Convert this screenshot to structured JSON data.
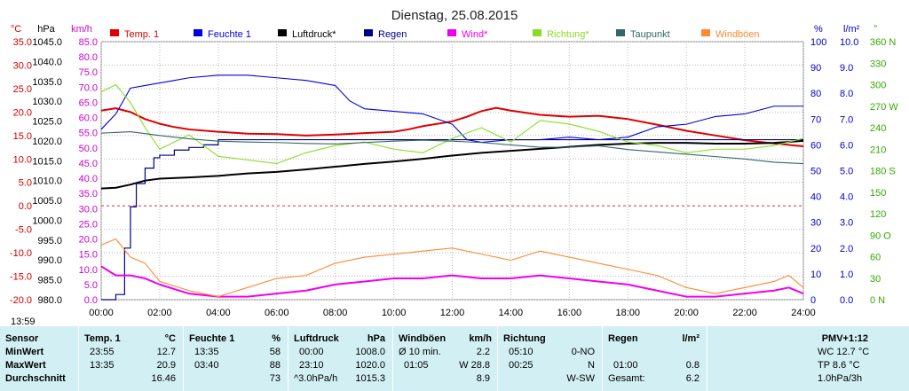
{
  "chart_data": {
    "type": "line",
    "title": "Dienstag, 25.08.2015",
    "x_axis": {
      "ticks": [
        "00:00",
        "02:00",
        "04:00",
        "06:00",
        "08:00",
        "10:00",
        "12:00",
        "14:00",
        "16:00",
        "18:00",
        "20:00",
        "22:00",
        "24:00"
      ],
      "range": [
        0,
        24
      ],
      "start_label": "13:59"
    },
    "left_axes": [
      {
        "unit": "°C",
        "color": "#cc0000",
        "range": [
          -20,
          35
        ],
        "step": 5
      },
      {
        "unit": "hPa",
        "color": "#000000",
        "range": [
          980,
          1045
        ],
        "step": 5
      },
      {
        "unit": "km/h",
        "color": "#cc00cc",
        "range": [
          0,
          85
        ],
        "step": 5
      }
    ],
    "right_axes": [
      {
        "unit": "%",
        "color": "#0000cc",
        "range": [
          0,
          100
        ],
        "step": 10
      },
      {
        "unit": "l/m²",
        "color": "#0000cc",
        "range": [
          0,
          10
        ],
        "step": 1
      },
      {
        "unit": "°",
        "color": "#33aa00",
        "range": [
          0,
          360
        ],
        "step": 30,
        "direction_labels": {
          "0": "N",
          "90": "O",
          "180": "S",
          "270": "W",
          "360": "N"
        }
      }
    ],
    "grid": true,
    "legend": [
      {
        "name": "Temp. 1",
        "color": "#dd0000"
      },
      {
        "name": "Feuchte 1",
        "color": "#0000dd"
      },
      {
        "name": "Luftdruck*",
        "color": "#000000"
      },
      {
        "name": "Regen",
        "color": "#000088"
      },
      {
        "name": "Wind*",
        "color": "#ee00ee"
      },
      {
        "name": "Richtung*",
        "color": "#88dd22"
      },
      {
        "name": "Taupunkt",
        "color": "#336666"
      },
      {
        "name": "Windböen",
        "color": "#ff8833"
      }
    ],
    "series": [
      {
        "name": "Temp. 1",
        "axis": "°C",
        "color": "#dd0000",
        "x": [
          0,
          0.5,
          1,
          1.5,
          2,
          2.5,
          3,
          4,
          5,
          6,
          7,
          8,
          9,
          10,
          10.5,
          11,
          11.5,
          12,
          12.5,
          13,
          13.5,
          14,
          15,
          16,
          17,
          18,
          19,
          20,
          21,
          22,
          23,
          24
        ],
        "values": [
          20.3,
          20.8,
          20.0,
          18.5,
          17.5,
          16.8,
          16.3,
          15.8,
          15.4,
          15.3,
          15.0,
          15.2,
          15.5,
          15.8,
          16.3,
          17.0,
          17.5,
          18.0,
          19.0,
          20.2,
          20.9,
          20.3,
          19.4,
          19.0,
          19.2,
          18.5,
          17.3,
          16.0,
          15.0,
          14.0,
          13.3,
          12.7
        ]
      },
      {
        "name": "Feuchte 1",
        "axis": "%",
        "color": "#0000dd",
        "x": [
          0,
          0.5,
          1,
          1.5,
          2,
          2.5,
          3,
          4,
          5,
          6,
          7,
          8,
          8.5,
          9,
          10,
          11,
          12,
          12.5,
          13,
          14,
          15,
          16,
          17,
          18,
          19,
          20,
          21,
          22,
          23,
          24
        ],
        "values": [
          66,
          72,
          82,
          83,
          84,
          85,
          86,
          87,
          87,
          86,
          85,
          83,
          77,
          74,
          73,
          72,
          68,
          62,
          61,
          62,
          62,
          63,
          62,
          63,
          67,
          68,
          71,
          72,
          75,
          75
        ]
      },
      {
        "name": "Luftdruck*",
        "axis": "hPa",
        "color": "#000000",
        "x": [
          0,
          0.5,
          1,
          1.5,
          2,
          3,
          4,
          5,
          6,
          7,
          8,
          9,
          10,
          11,
          12,
          13,
          14,
          15,
          16,
          17,
          18,
          19,
          20,
          21,
          22,
          23,
          24
        ],
        "values": [
          1008.0,
          1008.2,
          1009.0,
          1010.0,
          1010.5,
          1010.8,
          1011.2,
          1011.8,
          1012.2,
          1012.8,
          1013.5,
          1014.2,
          1014.8,
          1015.5,
          1016.3,
          1017.0,
          1017.5,
          1018.0,
          1018.5,
          1019.0,
          1019.3,
          1019.5,
          1019.5,
          1019.3,
          1019.3,
          1019.5,
          1020.0
        ]
      },
      {
        "name": "Regen",
        "axis": "l/m²",
        "color": "#000088",
        "x": [
          0,
          0.5,
          0.8,
          1.0,
          1.2,
          1.5,
          1.8,
          2.0,
          2.5,
          3.0,
          3.5,
          4,
          6,
          8,
          24
        ],
        "values": [
          0,
          0.2,
          2.0,
          3.6,
          4.5,
          5.1,
          5.5,
          5.6,
          5.8,
          5.9,
          6.0,
          6.2,
          6.2,
          6.2,
          6.2
        ]
      },
      {
        "name": "Wind*",
        "axis": "km/h",
        "color": "#ee00ee",
        "x": [
          0,
          0.5,
          1,
          1.5,
          2,
          3,
          4,
          5,
          6,
          7,
          8,
          9,
          10,
          11,
          12,
          13,
          14,
          15,
          16,
          17,
          18,
          19,
          20,
          21,
          22,
          23,
          23.5,
          24
        ],
        "values": [
          11,
          8,
          8,
          7,
          5,
          2,
          1,
          1,
          2,
          3,
          5,
          6,
          7,
          7,
          8,
          7,
          7,
          8,
          7,
          6,
          5,
          3,
          1,
          1,
          2,
          3,
          4,
          2
        ]
      },
      {
        "name": "Richtung*",
        "axis": "°",
        "color": "#88dd22",
        "x": [
          0,
          0.5,
          1,
          1.5,
          2,
          3,
          4,
          5,
          6,
          7,
          8,
          9,
          10,
          11,
          12,
          13,
          14,
          15,
          16,
          17,
          18,
          19,
          20,
          21,
          22,
          23,
          24
        ],
        "values": [
          290,
          300,
          275,
          240,
          210,
          230,
          200,
          195,
          190,
          205,
          215,
          220,
          210,
          205,
          225,
          240,
          220,
          250,
          245,
          235,
          220,
          215,
          205,
          210,
          210,
          215,
          225
        ]
      },
      {
        "name": "Taupunkt",
        "axis": "°C",
        "color": "#336666",
        "x": [
          0,
          1,
          2,
          3,
          4,
          5,
          6,
          7,
          8,
          9,
          10,
          11,
          12,
          13,
          14,
          15,
          16,
          17,
          18,
          19,
          20,
          21,
          22,
          23,
          24
        ],
        "values": [
          15.5,
          15.8,
          15.0,
          14.3,
          13.8,
          13.6,
          13.5,
          13.3,
          13.2,
          13.5,
          13.8,
          14.0,
          13.8,
          13.5,
          13.0,
          12.5,
          12.5,
          12.8,
          12.0,
          11.5,
          11.0,
          10.5,
          10.0,
          9.3,
          9.0
        ]
      },
      {
        "name": "Windböen",
        "axis": "km/h",
        "color": "#ff8833",
        "x": [
          0,
          0.5,
          1,
          1.5,
          2,
          3,
          4,
          5,
          6,
          7,
          8,
          9,
          10,
          11,
          12,
          13,
          14,
          15,
          16,
          17,
          18,
          19,
          20,
          21,
          22,
          23,
          23.5,
          24
        ],
        "values": [
          18,
          20,
          14,
          12,
          6,
          3,
          1,
          4,
          7,
          8,
          12,
          14,
          15,
          16,
          17,
          15,
          13,
          16,
          14,
          12,
          10,
          8,
          4,
          2,
          4,
          6,
          8,
          4
        ]
      }
    ]
  },
  "stats": {
    "sensor_header": "Sensor",
    "row_labels": [
      "MinWert",
      "MaxWert",
      "Durchschnitt"
    ],
    "temp": {
      "title": "Temp. 1",
      "unit": "°C",
      "min_time": "23:55",
      "min_val": "12.7",
      "max_time": "13:35",
      "max_val": "20.9",
      "avg_val": "16.46"
    },
    "humidity": {
      "title": "Feuchte 1",
      "unit": "%",
      "min_time": "13:35",
      "min_val": "58",
      "max_time": "03:40",
      "max_val": "88",
      "avg_val": "73"
    },
    "pressure": {
      "title": "Luftdruck",
      "unit": "hPa",
      "min_time": "00:00",
      "min_val": "1008.0",
      "max_time": "23:10",
      "max_val": "1020.0",
      "avg_label": "^3.0hPa/h",
      "avg_val": "1015.3"
    },
    "gusts": {
      "title": "Windböen",
      "unit": "km/h",
      "row1_label": "Ø 10 min.",
      "row1_val": "2.2",
      "row2_time": "01:05",
      "row2_val": "W 28.8",
      "avg_val": "8.9"
    },
    "direction": {
      "title": "Richtung",
      "row1_time": "05:10",
      "row1_val": "0-NO",
      "row2_time": "00:25",
      "row2_val": "N",
      "avg_val": "W-SW"
    },
    "rain": {
      "title": "Regen",
      "unit": "l/m²",
      "row2_time": "01:00",
      "row2_val": "0.8",
      "avg_label": "Gesamt:",
      "avg_val": "6.2"
    },
    "pmv": {
      "title": "PMV+1:12",
      "line1": "WC 12.7 °C",
      "line2": "TP 8.6 °C",
      "line3": "1.0hPa/3h"
    }
  }
}
